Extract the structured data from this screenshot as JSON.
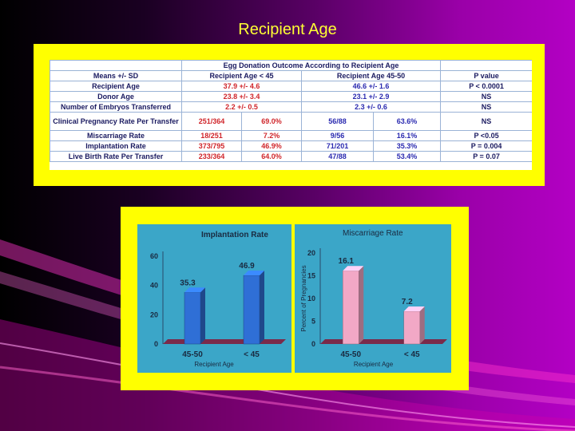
{
  "slide": {
    "title": "Recipient Age"
  },
  "table": {
    "title": "Egg Donation Outcome According to Recipient Age",
    "headers": [
      "Means +/- SD",
      "Recipient Age < 45",
      "Recipient Age 45-50",
      "P value"
    ],
    "rows": [
      {
        "label": "Recipient Age",
        "a": "37.9 +/- 4.6",
        "b": "46.6 +/- 1.6",
        "p": "P < 0.0001"
      },
      {
        "label": "Donor Age",
        "a": "23.8 +/- 3.4",
        "b": "23.1 +/- 2.9",
        "p": "NS"
      },
      {
        "label": "Number of Embryos Transferred",
        "a": "2.2 +/- 0.5",
        "b": "2.3 +/- 0.6",
        "p": "NS"
      },
      {
        "label": "Clinical Pregnancy Rate Per Transfer",
        "a1": "251/364",
        "a2": "69.0%",
        "b1": "56/88",
        "b2": "63.6%",
        "p": "NS"
      },
      {
        "label": "Miscarriage Rate",
        "a1": "18/251",
        "a2": "7.2%",
        "b1": "9/56",
        "b2": "16.1%",
        "p": "P <0.05"
      },
      {
        "label": "Implantation Rate",
        "a1": "373/795",
        "a2": "46.9%",
        "b1": "71/201",
        "b2": "35.3%",
        "p": "P = 0.004"
      },
      {
        "label": "Live Birth Rate Per Transfer",
        "a1": "233/364",
        "a2": "64.0%",
        "b1": "47/88",
        "b2": "53.4%",
        "p": "P = 0.07"
      }
    ]
  },
  "chart_data": [
    {
      "type": "bar",
      "title": "Implantation Rate",
      "categories": [
        "45-50",
        "< 45"
      ],
      "values": [
        35.3,
        46.9
      ],
      "xlabel": "Recipient Age",
      "ylabel": "",
      "ylim": [
        0,
        60
      ],
      "yticks": [
        "0",
        "20",
        "40",
        "60"
      ],
      "colors": [
        "#2f6fd6",
        "#2f6fd6"
      ]
    },
    {
      "type": "bar",
      "title": "Miscarriage Rate",
      "categories": [
        "45-50",
        "< 45"
      ],
      "values": [
        16.1,
        7.2
      ],
      "xlabel": "Recipient Age",
      "ylabel": "Percent of Pregnancies",
      "ylim": [
        0,
        20
      ],
      "yticks": [
        "0",
        "5",
        "10",
        "15",
        "20"
      ],
      "colors": [
        "#f2a8c6",
        "#f2a8c6"
      ]
    }
  ]
}
